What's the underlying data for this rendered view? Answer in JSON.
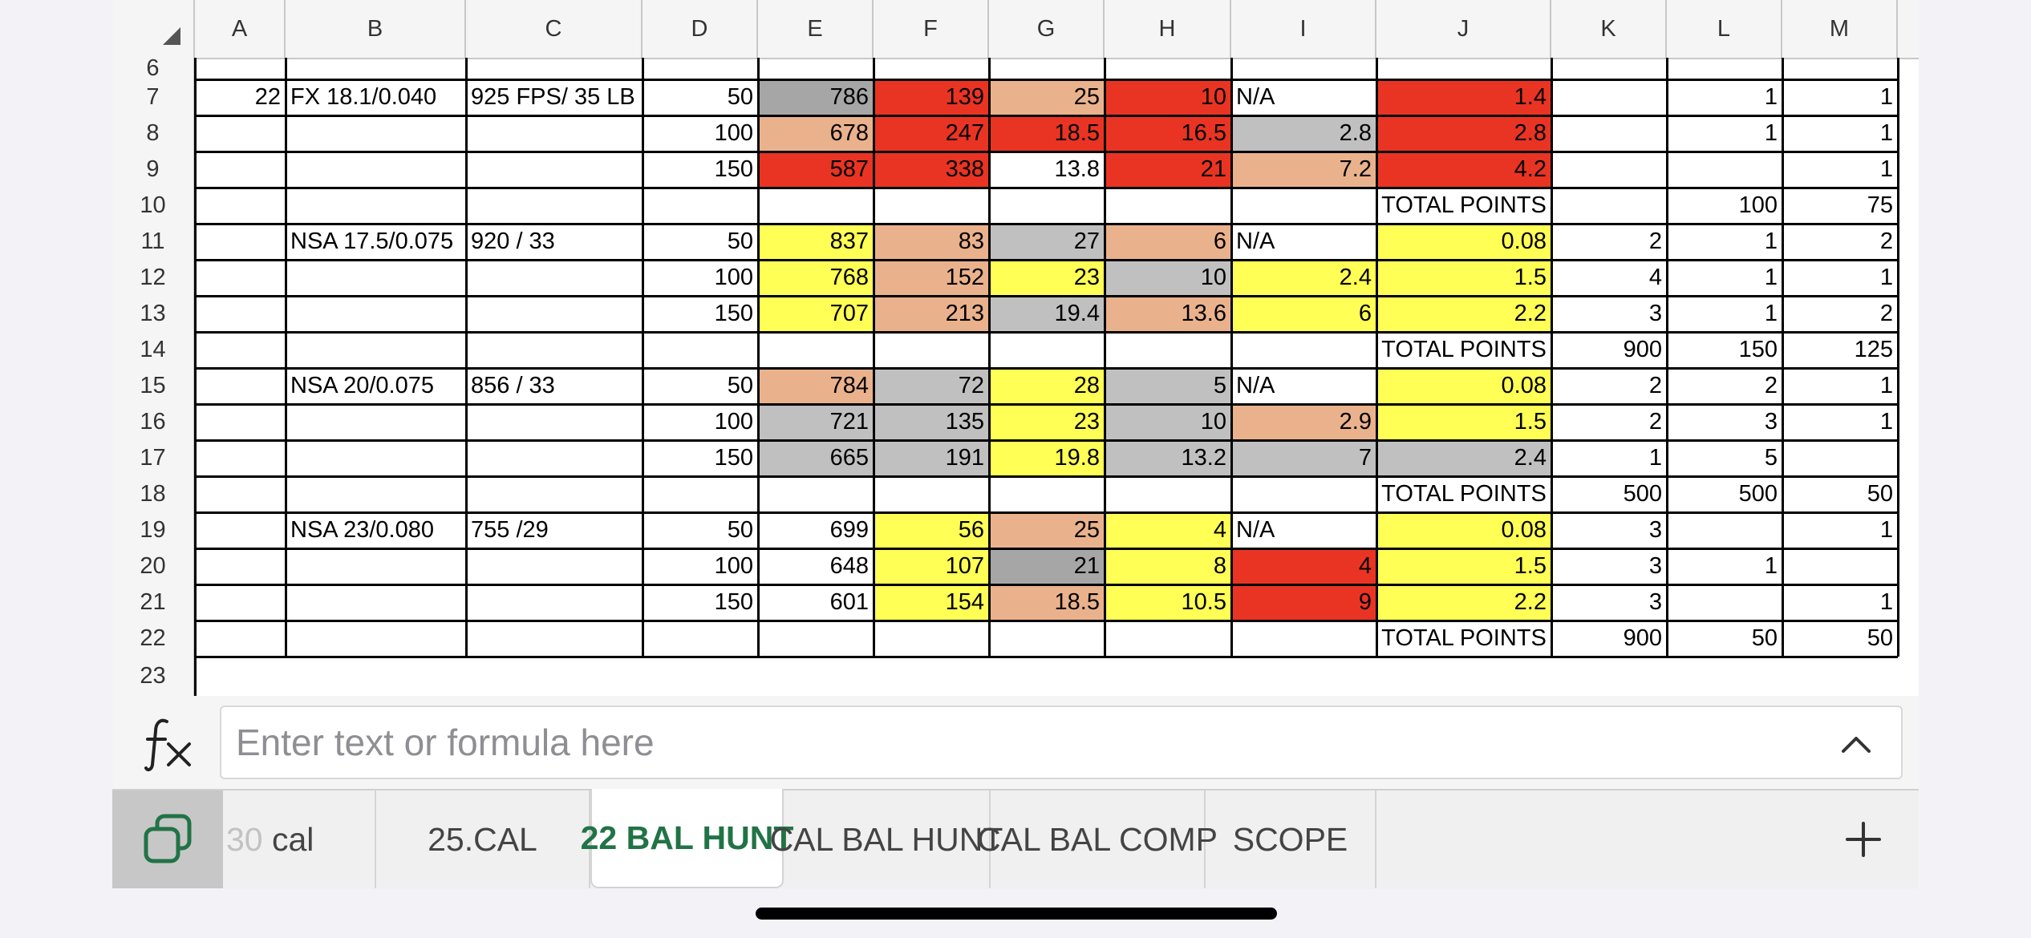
{
  "columns": [
    "A",
    "B",
    "C",
    "D",
    "E",
    "F",
    "G",
    "H",
    "I",
    "J",
    "K",
    "L",
    "M"
  ],
  "rows": [
    {
      "n": "6",
      "cells": [
        "",
        "",
        "",
        "",
        "",
        "",
        "",
        "",
        "",
        "",
        "",
        "",
        ""
      ]
    },
    {
      "n": "7",
      "cells": [
        "22",
        "FX 18.1/0.040",
        "925 FPS/ 35 LB",
        "50",
        "786",
        "139",
        "25",
        "10",
        "N/A",
        "1.4",
        "",
        "1",
        "1"
      ]
    },
    {
      "n": "8",
      "cells": [
        "",
        "",
        "",
        "100",
        "678",
        "247",
        "18.5",
        "16.5",
        "2.8",
        "2.8",
        "",
        "1",
        "1"
      ]
    },
    {
      "n": "9",
      "cells": [
        "",
        "",
        "",
        "150",
        "587",
        "338",
        "13.8",
        "21",
        "7.2",
        "4.2",
        "",
        "",
        "1"
      ]
    },
    {
      "n": "10",
      "cells": [
        "",
        "",
        "",
        "",
        "",
        "",
        "",
        "",
        "",
        "TOTAL POINTS",
        "",
        "100",
        "75"
      ]
    },
    {
      "n": "11",
      "cells": [
        "",
        "NSA 17.5/0.075",
        "920 / 33",
        "50",
        "837",
        "83",
        "27",
        "6",
        "N/A",
        "0.08",
        "2",
        "1",
        "2"
      ]
    },
    {
      "n": "12",
      "cells": [
        "",
        "",
        "",
        "100",
        "768",
        "152",
        "23",
        "10",
        "2.4",
        "1.5",
        "4",
        "1",
        "1"
      ]
    },
    {
      "n": "13",
      "cells": [
        "",
        "",
        "",
        "150",
        "707",
        "213",
        "19.4",
        "13.6",
        "6",
        "2.2",
        "3",
        "1",
        "2"
      ]
    },
    {
      "n": "14",
      "cells": [
        "",
        "",
        "",
        "",
        "",
        "",
        "",
        "",
        "",
        "TOTAL POINTS",
        "900",
        "150",
        "125"
      ]
    },
    {
      "n": "15",
      "cells": [
        "",
        "NSA 20/0.075",
        "856 / 33",
        "50",
        "784",
        "72",
        "28",
        "5",
        "N/A",
        "0.08",
        "2",
        "2",
        "1"
      ]
    },
    {
      "n": "16",
      "cells": [
        "",
        "",
        "",
        "100",
        "721",
        "135",
        "23",
        "10",
        "2.9",
        "1.5",
        "2",
        "3",
        "1"
      ]
    },
    {
      "n": "17",
      "cells": [
        "",
        "",
        "",
        "150",
        "665",
        "191",
        "19.8",
        "13.2",
        "7",
        "2.4",
        "1",
        "5",
        ""
      ]
    },
    {
      "n": "18",
      "cells": [
        "",
        "",
        "",
        "",
        "",
        "",
        "",
        "",
        "",
        "TOTAL POINTS",
        "500",
        "500",
        "50"
      ]
    },
    {
      "n": "19",
      "cells": [
        "",
        "NSA 23/0.080",
        "755 /29",
        "50",
        "699",
        "56",
        "25",
        "4",
        "N/A",
        "0.08",
        "3",
        "",
        "1"
      ]
    },
    {
      "n": "20",
      "cells": [
        "",
        "",
        "",
        "100",
        "648",
        "107",
        "21",
        "8",
        "4",
        "1.5",
        "3",
        "1",
        ""
      ]
    },
    {
      "n": "21",
      "cells": [
        "",
        "",
        "",
        "150",
        "601",
        "154",
        "18.5",
        "10.5",
        "9",
        "2.2",
        "3",
        "",
        "1"
      ]
    },
    {
      "n": "22",
      "cells": [
        "",
        "",
        "",
        "",
        "",
        "",
        "",
        "",
        "",
        "TOTAL POINTS",
        "900",
        "50",
        "50"
      ]
    },
    {
      "n": "23",
      "cells": [
        "",
        "",
        "",
        "",
        "",
        "",
        "",
        "",
        "",
        "",
        "",
        "",
        ""
      ]
    }
  ],
  "fills": {
    "7": {
      "E": "gray_dark",
      "F": "red",
      "G": "peach",
      "H": "red",
      "J": "red"
    },
    "8": {
      "E": "peach",
      "F": "red",
      "G": "red",
      "H": "red",
      "I": "gray",
      "J": "red"
    },
    "9": {
      "E": "red",
      "F": "red",
      "H": "red",
      "I": "peach",
      "J": "red"
    },
    "11": {
      "E": "yellow",
      "F": "peach",
      "G": "gray",
      "H": "peach",
      "J": "yellow"
    },
    "12": {
      "E": "yellow",
      "F": "peach",
      "G": "yellow",
      "H": "gray",
      "I": "yellow",
      "J": "yellow"
    },
    "13": {
      "E": "yellow",
      "F": "peach",
      "G": "gray",
      "H": "peach",
      "I": "yellow",
      "J": "yellow"
    },
    "15": {
      "E": "peach",
      "F": "gray",
      "G": "yellow",
      "H": "gray",
      "J": "yellow"
    },
    "16": {
      "E": "gray",
      "F": "gray",
      "G": "yellow",
      "H": "gray",
      "I": "peach",
      "J": "yellow"
    },
    "17": {
      "E": "gray",
      "F": "gray",
      "G": "yellow",
      "H": "gray",
      "I": "gray",
      "J": "gray"
    },
    "19": {
      "F": "yellow",
      "G": "peach",
      "H": "yellow",
      "J": "yellow"
    },
    "20": {
      "F": "yellow",
      "G": "gray_dark",
      "H": "yellow",
      "I": "red",
      "J": "yellow"
    },
    "21": {
      "F": "yellow",
      "G": "peach",
      "H": "yellow",
      "I": "red",
      "J": "yellow"
    }
  },
  "colors": {
    "red": "#ea3423",
    "peach": "#eab28c",
    "yellow": "#ffff55",
    "gray": "#c0c0c0",
    "gray_dark": "#a6a6a6",
    "accent": "#217346"
  },
  "formula_bar": {
    "icon": "fx-icon",
    "placeholder": "Enter text or formula here"
  },
  "tabs": [
    {
      "label": "30 cal",
      "faded_prefix": "30",
      "rest": " cal",
      "active": false
    },
    {
      "label": "25.CAL",
      "active": false
    },
    {
      "label": "22 BAL HUNT",
      "active": true
    },
    {
      "label": "CAL BAL HUNT",
      "active": false
    },
    {
      "label": "CAL BAL COMP",
      "active": false
    },
    {
      "label": "SCOPE",
      "active": false
    }
  ],
  "tabs_tail": {
    "first_faded_prefix": "30",
    "first_rest": " cal"
  },
  "add_sheet_label": "+"
}
